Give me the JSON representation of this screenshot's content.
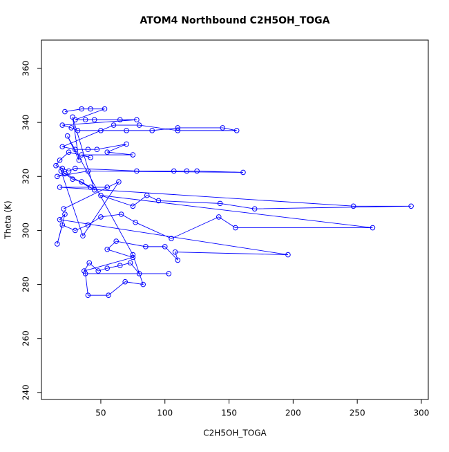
{
  "chart_data": {
    "type": "line",
    "title": "ATOM4 Northbound C2H5OH_TOGA",
    "x_label": "C2H5OH_TOGA",
    "y_label": "Theta (K)",
    "color": "#0000ff",
    "markers": "open-circle",
    "x": [
      22,
      35,
      42,
      53,
      30,
      38,
      45,
      65,
      78,
      20,
      27,
      32,
      50,
      70,
      90,
      110,
      145,
      156,
      110,
      80,
      60,
      20,
      30,
      40,
      47,
      70,
      55,
      75,
      35,
      42,
      25,
      18,
      15,
      20,
      25,
      30,
      78,
      107,
      117,
      125,
      161,
      40,
      16,
      22,
      28,
      35,
      42,
      55,
      18,
      247,
      292,
      170,
      143,
      95,
      86,
      75,
      50,
      262,
      155,
      142,
      105,
      77,
      66,
      50,
      40,
      30,
      20,
      16,
      22,
      18,
      196,
      108,
      110,
      100,
      85,
      62,
      55,
      75,
      37,
      41,
      48,
      55,
      65,
      73,
      80,
      103,
      38,
      40,
      56,
      69,
      83,
      75,
      24,
      33,
      28,
      45,
      19,
      36,
      64,
      21
    ],
    "values": [
      344,
      345,
      345,
      345,
      341,
      341,
      341,
      341,
      341,
      339,
      338,
      337,
      337,
      337,
      337,
      338,
      338,
      337,
      337,
      339,
      339,
      331,
      330,
      330,
      330,
      332,
      329,
      328,
      328,
      327,
      329,
      326,
      324,
      323,
      322,
      323,
      322,
      322,
      322,
      322,
      321.5,
      322,
      320,
      321,
      319,
      318,
      316,
      316,
      316,
      309,
      309,
      308,
      310,
      311,
      313,
      309,
      313,
      301,
      301,
      305,
      297,
      303,
      306,
      305,
      302,
      300,
      302,
      295,
      306,
      304,
      291,
      292,
      289,
      294,
      294,
      296,
      293,
      290,
      285,
      288,
      285,
      286,
      287,
      288,
      284,
      284,
      284,
      276,
      276,
      281,
      280,
      291,
      335,
      326,
      342,
      315,
      322,
      298,
      318,
      308
    ],
    "xlim": [
      3.7,
      305.4
    ],
    "ylim": [
      237.4,
      370.5
    ],
    "xticks": [
      50,
      100,
      150,
      200,
      250,
      300
    ],
    "yticks": [
      240,
      260,
      280,
      300,
      320,
      340,
      360
    ]
  }
}
